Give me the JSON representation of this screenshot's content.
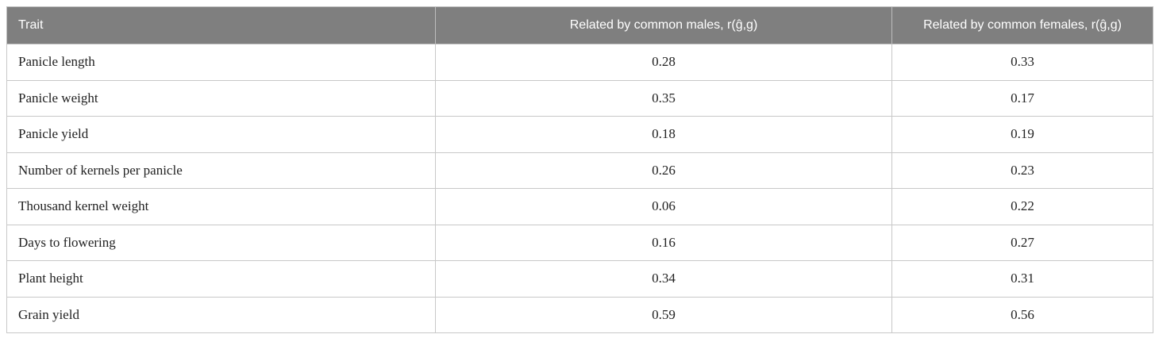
{
  "table": {
    "header": [
      "Trait",
      "Related by common males, r(ĝ,g)",
      "Related by common females, r(ĝ,g)"
    ],
    "rows": [
      [
        "Panicle length",
        "0.28",
        "0.33"
      ],
      [
        "Panicle weight",
        "0.35",
        "0.17"
      ],
      [
        "Panicle yield",
        "0.18",
        "0.19"
      ],
      [
        "Number of kernels per panicle",
        "0.26",
        "0.23"
      ],
      [
        "Thousand kernel weight",
        "0.06",
        "0.22"
      ],
      [
        "Days to flowering",
        "0.16",
        "0.27"
      ],
      [
        "Plant height",
        "0.34",
        "0.31"
      ],
      [
        "Grain yield",
        "0.59",
        "0.56"
      ]
    ]
  }
}
